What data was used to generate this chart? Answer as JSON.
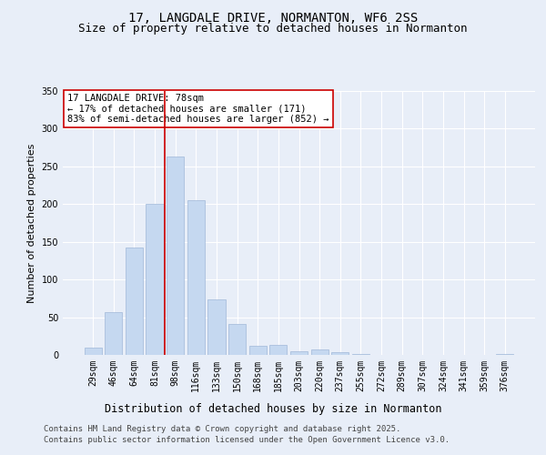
{
  "title_line1": "17, LANGDALE DRIVE, NORMANTON, WF6 2SS",
  "title_line2": "Size of property relative to detached houses in Normanton",
  "xlabel": "Distribution of detached houses by size in Normanton",
  "ylabel": "Number of detached properties",
  "categories": [
    "29sqm",
    "46sqm",
    "64sqm",
    "81sqm",
    "98sqm",
    "116sqm",
    "133sqm",
    "150sqm",
    "168sqm",
    "185sqm",
    "203sqm",
    "220sqm",
    "237sqm",
    "255sqm",
    "272sqm",
    "289sqm",
    "307sqm",
    "324sqm",
    "341sqm",
    "359sqm",
    "376sqm"
  ],
  "values": [
    10,
    57,
    143,
    200,
    263,
    205,
    74,
    41,
    12,
    13,
    5,
    7,
    4,
    1,
    0,
    0,
    0,
    0,
    0,
    0,
    1
  ],
  "bar_color": "#c5d8f0",
  "bar_edge_color": "#a0b8d8",
  "vline_x": 3.5,
  "vline_color": "#cc0000",
  "annotation_text": "17 LANGDALE DRIVE: 78sqm\n← 17% of detached houses are smaller (171)\n83% of semi-detached houses are larger (852) →",
  "annotation_box_color": "#ffffff",
  "annotation_box_edge": "#cc0000",
  "ylim": [
    0,
    350
  ],
  "yticks": [
    0,
    50,
    100,
    150,
    200,
    250,
    300,
    350
  ],
  "bg_color": "#e8eef8",
  "plot_bg_color": "#e8eef8",
  "grid_color": "#ffffff",
  "footer_line1": "Contains HM Land Registry data © Crown copyright and database right 2025.",
  "footer_line2": "Contains public sector information licensed under the Open Government Licence v3.0.",
  "title_fontsize": 10,
  "subtitle_fontsize": 9,
  "tick_fontsize": 7,
  "xlabel_fontsize": 8.5,
  "ylabel_fontsize": 8,
  "footer_fontsize": 6.5,
  "annot_fontsize": 7.5
}
